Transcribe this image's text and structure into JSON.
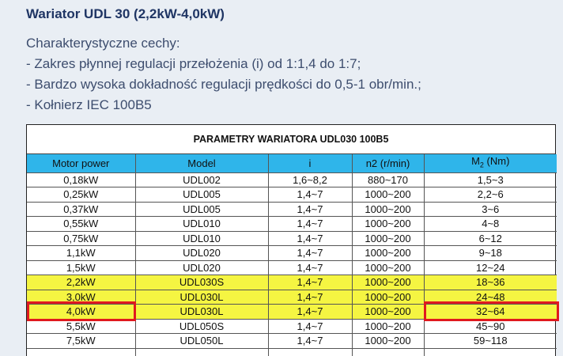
{
  "title": "Wariator UDL 30 (2,2kW-4,0kW)",
  "features": {
    "heading": "Charakterystyczne cechy:",
    "items": [
      "- Zakres płynnej regulacji przełożenia (i) od 1:1,4 do 1:7;",
      "- Bardzo wysoka dokładność regulacji prędkości do 0,5-1 obr/min.;",
      "- Kołnierz IEC 100B5"
    ]
  },
  "table": {
    "title": "PARAMETRY WARIATORA UDL030 100B5",
    "header": [
      "Motor power",
      "Model",
      "i",
      "n2 (r/min)",
      {
        "main": "M",
        "sub": "2",
        "rest": " (Nm)"
      }
    ],
    "rows": [
      [
        "0,18kW",
        "UDL002",
        "1,6~8,2",
        "880~170",
        "1,5~3"
      ],
      [
        "0,25kW",
        "UDL005",
        "1,4~7",
        "1000~200",
        "2,2~6"
      ],
      [
        "0,37kW",
        "UDL005",
        "1,4~7",
        "1000~200",
        "3~6"
      ],
      [
        "0,55kW",
        "UDL010",
        "1,4~7",
        "1000~200",
        "4~8"
      ],
      [
        "0,75kW",
        "UDL010",
        "1,4~7",
        "1000~200",
        "6~12"
      ],
      [
        "1,1kW",
        "UDL020",
        "1,4~7",
        "1000~200",
        "9~18"
      ],
      [
        "1,5kW",
        "UDL020",
        "1,4~7",
        "1000~200",
        "12~24"
      ],
      [
        "2,2kW",
        "UDL030S",
        "1,4~7",
        "1000~200",
        "18~36"
      ],
      [
        "3,0kW",
        "UDL030L",
        "1,4~7",
        "1000~200",
        "24~48"
      ],
      [
        "4,0kW",
        "UDL030L",
        "1,4~7",
        "1000~200",
        "32~64"
      ],
      [
        "5,5kW",
        "UDL050S",
        "1,4~7",
        "1000~200",
        "45~90"
      ],
      [
        "7,5kW",
        "UDL050L",
        "1,4~7",
        "1000~200",
        "59~118"
      ]
    ]
  }
}
